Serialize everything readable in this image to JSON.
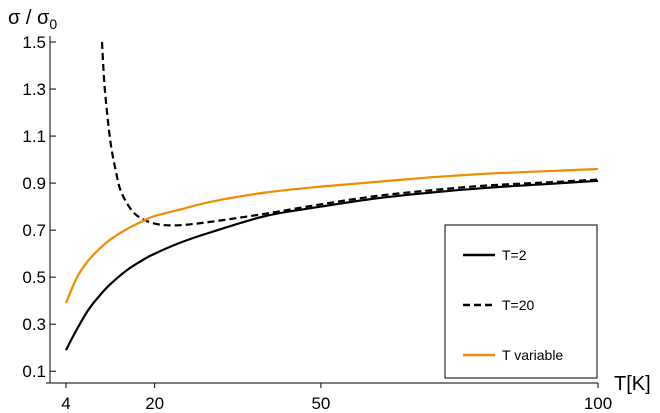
{
  "chart_data": {
    "type": "line",
    "ylabel_base": "σ / σ",
    "ylabel_sub": "0",
    "xlabel": "T[K]",
    "xlim": [
      4,
      100
    ],
    "ylim": [
      0.05,
      1.5
    ],
    "xticks": [
      4,
      20,
      50,
      100
    ],
    "yticks": [
      0.1,
      0.3,
      0.5,
      0.7,
      0.9,
      1.1,
      1.3,
      1.5
    ],
    "ytick_labels": [
      "0.1",
      "0.3",
      "0.5",
      "0.7",
      "0.9",
      "1.1",
      "1.3",
      "1.5"
    ],
    "legend_position": "bottom-right",
    "series": [
      {
        "name": "T=2",
        "color": "#000000",
        "style": "solid",
        "x": [
          4,
          6,
          8,
          10,
          12,
          15,
          18,
          20,
          25,
          30,
          40,
          50,
          60,
          70,
          80,
          90,
          100
        ],
        "y": [
          0.19,
          0.28,
          0.36,
          0.42,
          0.47,
          0.53,
          0.575,
          0.6,
          0.65,
          0.69,
          0.76,
          0.8,
          0.835,
          0.86,
          0.88,
          0.895,
          0.91
        ]
      },
      {
        "name": "T=20",
        "color": "#000000",
        "style": "dashed",
        "x": [
          10.5,
          11,
          12,
          13,
          14,
          16,
          18,
          20,
          22,
          25,
          30,
          40,
          50,
          60,
          70,
          80,
          90,
          100
        ],
        "y": [
          1.5,
          1.3,
          1.08,
          0.95,
          0.86,
          0.78,
          0.745,
          0.728,
          0.721,
          0.722,
          0.735,
          0.77,
          0.81,
          0.845,
          0.87,
          0.89,
          0.902,
          0.915
        ]
      },
      {
        "name": "T variable",
        "color": "#f08c00",
        "style": "solid",
        "x": [
          4,
          6,
          8,
          10,
          12,
          15,
          18,
          20,
          25,
          30,
          40,
          50,
          60,
          70,
          80,
          90,
          100
        ],
        "y": [
          0.39,
          0.5,
          0.57,
          0.62,
          0.66,
          0.705,
          0.74,
          0.76,
          0.79,
          0.82,
          0.86,
          0.885,
          0.905,
          0.925,
          0.94,
          0.95,
          0.96
        ]
      }
    ]
  }
}
